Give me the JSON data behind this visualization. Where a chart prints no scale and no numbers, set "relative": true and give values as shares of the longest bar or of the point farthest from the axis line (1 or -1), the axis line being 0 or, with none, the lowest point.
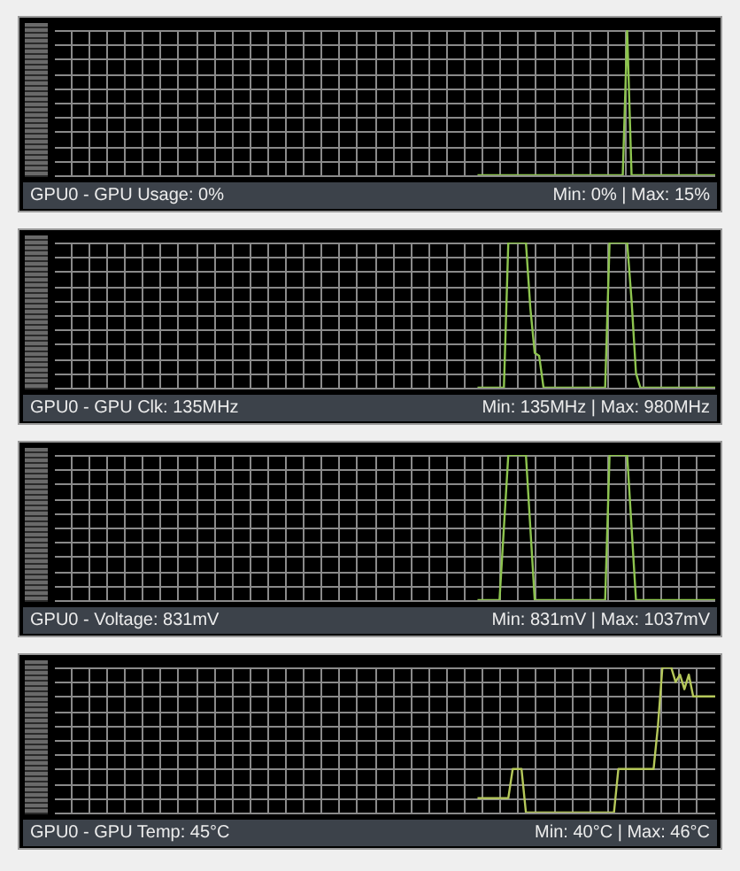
{
  "chart_data": [
    {
      "type": "line",
      "relative": true,
      "grid": true,
      "title": "GPU0 - GPU Usage: 0%",
      "annotations": [
        "Min: 0% | Max: 15%"
      ],
      "categories": [
        null,
        null,
        null,
        null,
        null,
        null,
        null,
        null,
        null,
        null,
        null,
        null,
        null,
        null,
        null,
        null,
        null,
        null,
        null,
        null,
        null,
        null,
        null,
        null,
        null,
        null,
        null,
        null,
        null,
        null,
        null,
        null,
        null,
        null,
        null,
        null,
        null,
        null,
        null,
        null,
        null,
        null,
        null,
        null,
        null,
        null,
        null,
        null,
        null,
        null,
        null,
        null,
        null,
        null,
        null,
        null,
        null,
        null,
        null,
        null,
        null,
        null,
        null,
        null,
        null,
        null,
        null,
        null,
        null,
        null,
        null,
        null,
        null,
        null,
        null,
        null,
        null,
        null,
        null,
        null,
        null,
        null,
        null,
        null,
        null,
        null,
        null,
        null,
        null,
        null,
        null,
        null,
        null,
        null,
        null,
        null,
        null,
        null,
        null,
        null,
        null,
        null,
        null,
        null,
        null,
        null,
        null,
        null,
        null,
        null,
        null,
        null,
        null,
        null,
        null,
        null,
        null,
        null,
        null,
        null,
        null,
        null,
        null,
        null,
        null,
        null,
        null,
        null,
        null,
        null,
        null,
        null,
        null,
        null,
        null,
        null,
        null,
        null,
        null,
        null,
        null,
        null,
        null,
        null,
        null,
        null,
        null,
        null,
        null,
        null,
        null
      ],
      "series": [
        {
          "color": "#8dc44e",
          "values": [
            null,
            null,
            null,
            null,
            null,
            null,
            null,
            null,
            null,
            null,
            null,
            null,
            null,
            null,
            null,
            null,
            null,
            null,
            null,
            null,
            null,
            null,
            null,
            null,
            null,
            null,
            null,
            null,
            null,
            null,
            null,
            null,
            null,
            null,
            null,
            null,
            null,
            null,
            null,
            null,
            null,
            null,
            null,
            null,
            null,
            null,
            null,
            null,
            null,
            null,
            null,
            null,
            null,
            null,
            null,
            null,
            null,
            null,
            null,
            null,
            null,
            null,
            null,
            null,
            null,
            null,
            null,
            null,
            null,
            null,
            null,
            null,
            null,
            null,
            null,
            null,
            null,
            null,
            null,
            null,
            null,
            null,
            null,
            null,
            null,
            null,
            null,
            null,
            null,
            null,
            null,
            null,
            null,
            null,
            null,
            null,
            0,
            0,
            0,
            0,
            0,
            0,
            0,
            0,
            0,
            0,
            0,
            0,
            0,
            0,
            0,
            0,
            0,
            0,
            0,
            0,
            0,
            0,
            0,
            0,
            0,
            0,
            0,
            0,
            0,
            0,
            0,
            0,
            0,
            0,
            1,
            0,
            0,
            0,
            0,
            0,
            0,
            0,
            0,
            0,
            0,
            0,
            0,
            0,
            0,
            0,
            0,
            0,
            0,
            0,
            0
          ]
        }
      ]
    },
    {
      "type": "line",
      "relative": true,
      "grid": true,
      "title": "GPU0 - GPU Clk: 135MHz",
      "annotations": [
        "Min: 135MHz | Max: 980MHz"
      ],
      "categories": [
        null,
        null,
        null,
        null,
        null,
        null,
        null,
        null,
        null,
        null,
        null,
        null,
        null,
        null,
        null,
        null,
        null,
        null,
        null,
        null,
        null,
        null,
        null,
        null,
        null,
        null,
        null,
        null,
        null,
        null,
        null,
        null,
        null,
        null,
        null,
        null,
        null,
        null,
        null,
        null,
        null,
        null,
        null,
        null,
        null,
        null,
        null,
        null,
        null,
        null,
        null,
        null,
        null,
        null,
        null,
        null,
        null,
        null,
        null,
        null,
        null,
        null,
        null,
        null,
        null,
        null,
        null,
        null,
        null,
        null,
        null,
        null,
        null,
        null,
        null,
        null,
        null,
        null,
        null,
        null,
        null,
        null,
        null,
        null,
        null,
        null,
        null,
        null,
        null,
        null,
        null,
        null,
        null,
        null,
        null,
        null,
        null,
        null,
        null,
        null,
        null,
        null,
        null,
        null,
        null,
        null,
        null,
        null,
        null,
        null,
        null,
        null,
        null,
        null,
        null,
        null,
        null,
        null,
        null,
        null,
        null,
        null,
        null,
        null,
        null,
        null,
        null,
        null,
        null,
        null,
        null,
        null,
        null,
        null,
        null,
        null,
        null,
        null,
        null,
        null,
        null,
        null,
        null,
        null,
        null,
        null,
        null,
        null,
        null,
        null,
        null
      ],
      "series": [
        {
          "color": "#8dc44e",
          "values": [
            null,
            null,
            null,
            null,
            null,
            null,
            null,
            null,
            null,
            null,
            null,
            null,
            null,
            null,
            null,
            null,
            null,
            null,
            null,
            null,
            null,
            null,
            null,
            null,
            null,
            null,
            null,
            null,
            null,
            null,
            null,
            null,
            null,
            null,
            null,
            null,
            null,
            null,
            null,
            null,
            null,
            null,
            null,
            null,
            null,
            null,
            null,
            null,
            null,
            null,
            null,
            null,
            null,
            null,
            null,
            null,
            null,
            null,
            null,
            null,
            null,
            null,
            null,
            null,
            null,
            null,
            null,
            null,
            null,
            null,
            null,
            null,
            null,
            null,
            null,
            null,
            null,
            null,
            null,
            null,
            null,
            null,
            null,
            null,
            null,
            null,
            null,
            null,
            null,
            null,
            null,
            null,
            null,
            null,
            null,
            null,
            0,
            0,
            0,
            0,
            0,
            0,
            0,
            1,
            1,
            1,
            1,
            1,
            0.55,
            0.24,
            0.22,
            0,
            0,
            0,
            0,
            0,
            0,
            0,
            0,
            0,
            0,
            0,
            0,
            0,
            0,
            0,
            1,
            1,
            1,
            1,
            1,
            0.6,
            0.1,
            0,
            0,
            0,
            0,
            0,
            0,
            0,
            0,
            0,
            0,
            0,
            0,
            0,
            0,
            0,
            0,
            0,
            0
          ]
        }
      ]
    },
    {
      "type": "line",
      "relative": true,
      "grid": true,
      "title": "GPU0 - Voltage: 831mV",
      "annotations": [
        "Min: 831mV | Max: 1037mV"
      ],
      "categories": [
        null,
        null,
        null,
        null,
        null,
        null,
        null,
        null,
        null,
        null,
        null,
        null,
        null,
        null,
        null,
        null,
        null,
        null,
        null,
        null,
        null,
        null,
        null,
        null,
        null,
        null,
        null,
        null,
        null,
        null,
        null,
        null,
        null,
        null,
        null,
        null,
        null,
        null,
        null,
        null,
        null,
        null,
        null,
        null,
        null,
        null,
        null,
        null,
        null,
        null,
        null,
        null,
        null,
        null,
        null,
        null,
        null,
        null,
        null,
        null,
        null,
        null,
        null,
        null,
        null,
        null,
        null,
        null,
        null,
        null,
        null,
        null,
        null,
        null,
        null,
        null,
        null,
        null,
        null,
        null,
        null,
        null,
        null,
        null,
        null,
        null,
        null,
        null,
        null,
        null,
        null,
        null,
        null,
        null,
        null,
        null,
        null,
        null,
        null,
        null,
        null,
        null,
        null,
        null,
        null,
        null,
        null,
        null,
        null,
        null,
        null,
        null,
        null,
        null,
        null,
        null,
        null,
        null,
        null,
        null,
        null,
        null,
        null,
        null,
        null,
        null,
        null,
        null,
        null,
        null,
        null,
        null,
        null,
        null,
        null,
        null,
        null,
        null,
        null,
        null,
        null,
        null,
        null,
        null,
        null,
        null,
        null,
        null,
        null,
        null,
        null
      ],
      "series": [
        {
          "color": "#8dc44e",
          "values": [
            null,
            null,
            null,
            null,
            null,
            null,
            null,
            null,
            null,
            null,
            null,
            null,
            null,
            null,
            null,
            null,
            null,
            null,
            null,
            null,
            null,
            null,
            null,
            null,
            null,
            null,
            null,
            null,
            null,
            null,
            null,
            null,
            null,
            null,
            null,
            null,
            null,
            null,
            null,
            null,
            null,
            null,
            null,
            null,
            null,
            null,
            null,
            null,
            null,
            null,
            null,
            null,
            null,
            null,
            null,
            null,
            null,
            null,
            null,
            null,
            null,
            null,
            null,
            null,
            null,
            null,
            null,
            null,
            null,
            null,
            null,
            null,
            null,
            null,
            null,
            null,
            null,
            null,
            null,
            null,
            null,
            null,
            null,
            null,
            null,
            null,
            null,
            null,
            null,
            null,
            null,
            null,
            null,
            null,
            null,
            null,
            0,
            0,
            0,
            0,
            0,
            0,
            0.5,
            1,
            1,
            1,
            1,
            1,
            0.5,
            0,
            0,
            0,
            0,
            0,
            0,
            0,
            0,
            0,
            0,
            0,
            0,
            0,
            0,
            0,
            0,
            0,
            1,
            1,
            1,
            1,
            1,
            0.5,
            0,
            0,
            0,
            0,
            0,
            0,
            0,
            0,
            0,
            0,
            0,
            0,
            0,
            0,
            0,
            0,
            0,
            0,
            0
          ]
        }
      ]
    },
    {
      "type": "line",
      "relative": true,
      "grid": true,
      "title": "GPU0 - GPU Temp: 45°C",
      "annotations": [
        "Min: 40°C | Max: 46°C"
      ],
      "categories": [
        null,
        null,
        null,
        null,
        null,
        null,
        null,
        null,
        null,
        null,
        null,
        null,
        null,
        null,
        null,
        null,
        null,
        null,
        null,
        null,
        null,
        null,
        null,
        null,
        null,
        null,
        null,
        null,
        null,
        null,
        null,
        null,
        null,
        null,
        null,
        null,
        null,
        null,
        null,
        null,
        null,
        null,
        null,
        null,
        null,
        null,
        null,
        null,
        null,
        null,
        null,
        null,
        null,
        null,
        null,
        null,
        null,
        null,
        null,
        null,
        null,
        null,
        null,
        null,
        null,
        null,
        null,
        null,
        null,
        null,
        null,
        null,
        null,
        null,
        null,
        null,
        null,
        null,
        null,
        null,
        null,
        null,
        null,
        null,
        null,
        null,
        null,
        null,
        null,
        null,
        null,
        null,
        null,
        null,
        null,
        null,
        null,
        null,
        null,
        null,
        null,
        null,
        null,
        null,
        null,
        null,
        null,
        null,
        null,
        null,
        null,
        null,
        null,
        null,
        null,
        null,
        null,
        null,
        null,
        null,
        null,
        null,
        null,
        null,
        null,
        null,
        null,
        null,
        null,
        null,
        null,
        null,
        null,
        null,
        null,
        null,
        null,
        null,
        null,
        null,
        null,
        null,
        null,
        null,
        null,
        null,
        null,
        null,
        null,
        null,
        null
      ],
      "series": [
        {
          "color": "#b5c85a",
          "values": [
            null,
            null,
            null,
            null,
            null,
            null,
            null,
            null,
            null,
            null,
            null,
            null,
            null,
            null,
            null,
            null,
            null,
            null,
            null,
            null,
            null,
            null,
            null,
            null,
            null,
            null,
            null,
            null,
            null,
            null,
            null,
            null,
            null,
            null,
            null,
            null,
            null,
            null,
            null,
            null,
            null,
            null,
            null,
            null,
            null,
            null,
            null,
            null,
            null,
            null,
            null,
            null,
            null,
            null,
            null,
            null,
            null,
            null,
            null,
            null,
            null,
            null,
            null,
            null,
            null,
            null,
            null,
            null,
            null,
            null,
            null,
            null,
            null,
            null,
            null,
            null,
            null,
            null,
            null,
            null,
            null,
            null,
            null,
            null,
            null,
            null,
            null,
            null,
            null,
            null,
            null,
            null,
            null,
            null,
            null,
            null,
            0.1,
            0.1,
            0.1,
            0.1,
            0.1,
            0.1,
            0.1,
            0.1,
            0.3,
            0.3,
            0.3,
            0,
            0,
            0,
            0,
            0,
            0,
            0,
            0,
            0,
            0,
            0,
            0,
            0,
            0,
            0,
            0,
            0,
            0,
            0,
            0,
            0,
            0.3,
            0.3,
            0.3,
            0.3,
            0.3,
            0.3,
            0.3,
            0.3,
            0.3,
            0.6,
            1,
            1,
            1,
            0.9,
            0.95,
            0.85,
            0.95,
            0.8,
            0.8,
            0.8,
            0.8,
            0.8,
            0.8
          ]
        }
      ]
    }
  ]
}
